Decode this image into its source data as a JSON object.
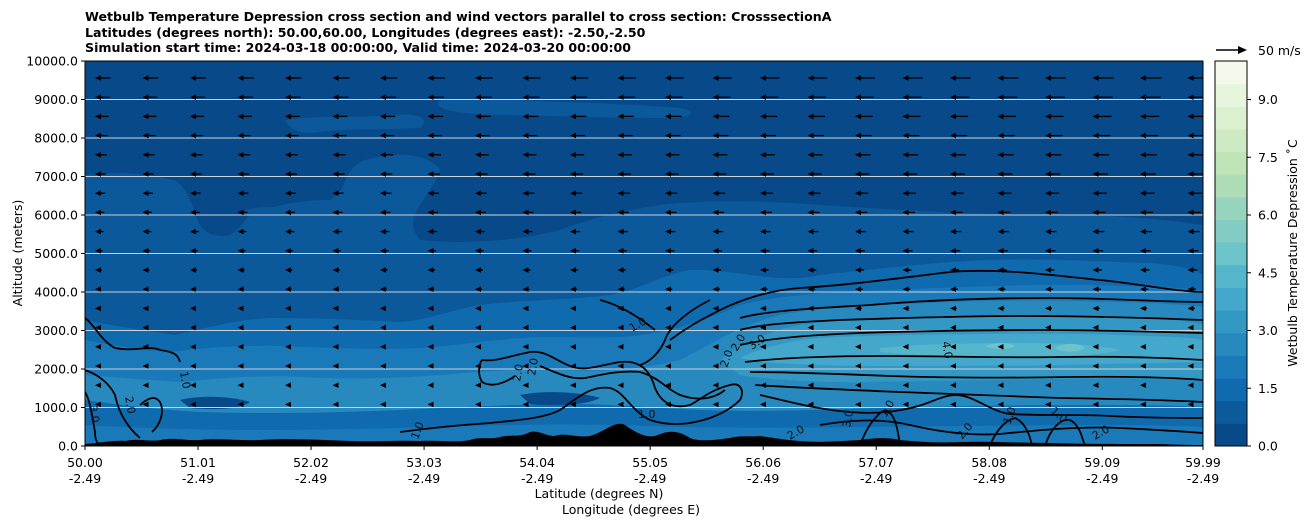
{
  "chart_data": {
    "type": "filled-contour cross section with wind vectors",
    "title_lines": [
      "Wetbulb Temperature Depression cross section and wind vectors parallel to cross section: CrosssectionA",
      "Latitudes (degrees north): 50.00,60.00, Longitudes (degrees east): -2.50,-2.50",
      "Simulation start time: 2024-03-18 00:00:00, Valid time: 2024-03-20 00:00:00"
    ],
    "ylabel": "Altitude (meters)",
    "xlabel_line1": "Latitude (degrees N)",
    "xlabel_line2": "Longitude (degrees E)",
    "ylim": [
      0,
      10000
    ],
    "y_ticks": [
      "0.0",
      "1000.0",
      "2000.0",
      "3000.0",
      "4000.0",
      "5000.0",
      "6000.0",
      "7000.0",
      "8000.0",
      "9000.0",
      "10000.0"
    ],
    "x_range": [
      50.0,
      59.99
    ],
    "x_ticks": [
      {
        "lat": "50.00",
        "lon": "-2.49"
      },
      {
        "lat": "51.01",
        "lon": "-2.49"
      },
      {
        "lat": "52.02",
        "lon": "-2.49"
      },
      {
        "lat": "53.03",
        "lon": "-2.49"
      },
      {
        "lat": "54.04",
        "lon": "-2.49"
      },
      {
        "lat": "55.05",
        "lon": "-2.49"
      },
      {
        "lat": "56.06",
        "lon": "-2.49"
      },
      {
        "lat": "57.07",
        "lon": "-2.49"
      },
      {
        "lat": "58.08",
        "lon": "-2.49"
      },
      {
        "lat": "59.09",
        "lon": "-2.49"
      },
      {
        "lat": "59.99",
        "lon": "-2.49"
      }
    ],
    "colorbar": {
      "label": "Wetbulb Temperature Depression ˚C",
      "range": [
        0,
        10
      ],
      "ticks": [
        "0.0",
        "1.5",
        "3.0",
        "4.5",
        "6.0",
        "7.5",
        "9.0"
      ],
      "colors": [
        "#084a89",
        "#0a5a9c",
        "#0f6aae",
        "#1a79b8",
        "#2889be",
        "#3498c4",
        "#43a8cc",
        "#55b5cb",
        "#6cc3c9",
        "#82ccc3",
        "#97d4be",
        "#aedcb7",
        "#bee4b8",
        "#cdeac3",
        "#dbf0cf",
        "#e8f5dd",
        "#f3faeb"
      ]
    },
    "reference_vector": {
      "label": "50 m/s"
    },
    "contour_labels": [
      "1.0",
      "2.0",
      "3.0",
      "4.0"
    ],
    "wind": {
      "direction": "westward (leftward)",
      "max_speed_ms": 50
    }
  }
}
